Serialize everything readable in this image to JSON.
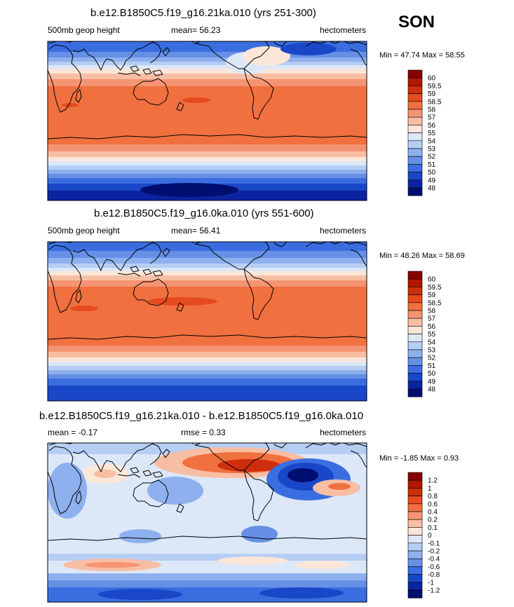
{
  "season": "SON",
  "colors": {
    "warm_deep": "#8b0000",
    "warm": "#e8542a",
    "cool": "#3a6ee0",
    "cool_deep": "#0a1f8f"
  },
  "chart_data": [
    {
      "type": "heatmap",
      "projection": "global cylindrical equidistant map",
      "title": "b.e12.B1850C5.f19_g16.21ka.010 (yrs 251-300)",
      "left_label": "500mb geop height",
      "mean_label": "mean=  56.23",
      "units": "hectometers",
      "stats_label": "Min =  47.74  Max =  58.55",
      "mean": 56.23,
      "min": 47.74,
      "max": 58.55,
      "colorbar": {
        "levels": [
          "60",
          "59.5",
          "59",
          "58.5",
          "58",
          "57",
          "56",
          "55",
          "54",
          "53",
          "52",
          "51",
          "50",
          "49",
          "48"
        ],
        "colors": [
          "#850000",
          "#b21800",
          "#cf2e0d",
          "#e64a1f",
          "#f0703f",
          "#f49473",
          "#f8bea4",
          "#fbe6d8",
          "#dce8f8",
          "#b6cef4",
          "#8eb0ee",
          "#6690e6",
          "#3a6ee0",
          "#1a47c8",
          "#0b23a0",
          "#000e70"
        ]
      }
    },
    {
      "type": "heatmap",
      "projection": "global cylindrical equidistant map",
      "title": "b.e12.B1850C5.f19_g16.0ka.010 (yrs 551-600)",
      "left_label": "500mb geop height",
      "mean_label": "mean=  56.41",
      "units": "hectometers",
      "stats_label": "Min =  48.26  Max =  58.69",
      "mean": 56.41,
      "min": 48.26,
      "max": 58.69,
      "colorbar": {
        "levels": [
          "60",
          "59.5",
          "59",
          "58.5",
          "58",
          "57",
          "56",
          "55",
          "54",
          "53",
          "52",
          "51",
          "50",
          "49",
          "48"
        ],
        "colors": [
          "#850000",
          "#b21800",
          "#cf2e0d",
          "#e64a1f",
          "#f0703f",
          "#f49473",
          "#f8bea4",
          "#fbe6d8",
          "#dce8f8",
          "#b6cef4",
          "#8eb0ee",
          "#6690e6",
          "#3a6ee0",
          "#1a47c8",
          "#0b23a0",
          "#000e70"
        ]
      }
    },
    {
      "type": "heatmap",
      "projection": "global cylindrical equidistant map",
      "title": "b.e12.B1850C5.f19_g16.21ka.010 - b.e12.B1850C5.f19_g16.0ka.010",
      "left_label": "mean =  -0.17",
      "mean_label": "rmse =   0.33",
      "units": "hectometers",
      "stats_label": "Min =  -1.85  Max =   0.93",
      "mean": -0.17,
      "rmse": 0.33,
      "min": -1.85,
      "max": 0.93,
      "colorbar": {
        "levels": [
          "1.2",
          "1",
          "0.8",
          "0.6",
          "0.4",
          "0.2",
          "0.1",
          "0",
          "-0.1",
          "-0.2",
          "-0.4",
          "-0.6",
          "-0.8",
          "-1",
          "-1.2"
        ],
        "colors": [
          "#850000",
          "#b21800",
          "#cf2e0d",
          "#e64a1f",
          "#f0703f",
          "#f49473",
          "#f8bea4",
          "#fbe6d8",
          "#dce8f8",
          "#b6cef4",
          "#8eb0ee",
          "#6690e6",
          "#3a6ee0",
          "#1a47c8",
          "#0b23a0",
          "#000e70"
        ]
      }
    }
  ]
}
